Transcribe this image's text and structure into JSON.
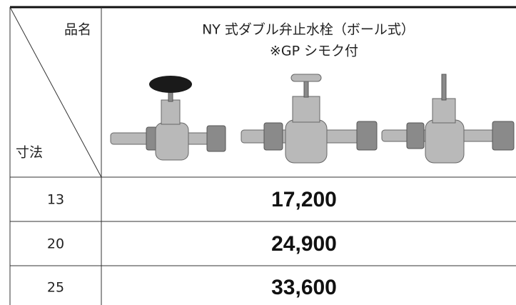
{
  "header": {
    "name_label": "品名",
    "size_label": "寸法",
    "product": "NY 式ダブル弁止水栓（ボール式）",
    "note": "※GP シモク付"
  },
  "table": {
    "rows": [
      [
        "13",
        "17,200"
      ],
      [
        "20",
        "24,900"
      ],
      [
        "25",
        "33,600"
      ]
    ]
  }
}
